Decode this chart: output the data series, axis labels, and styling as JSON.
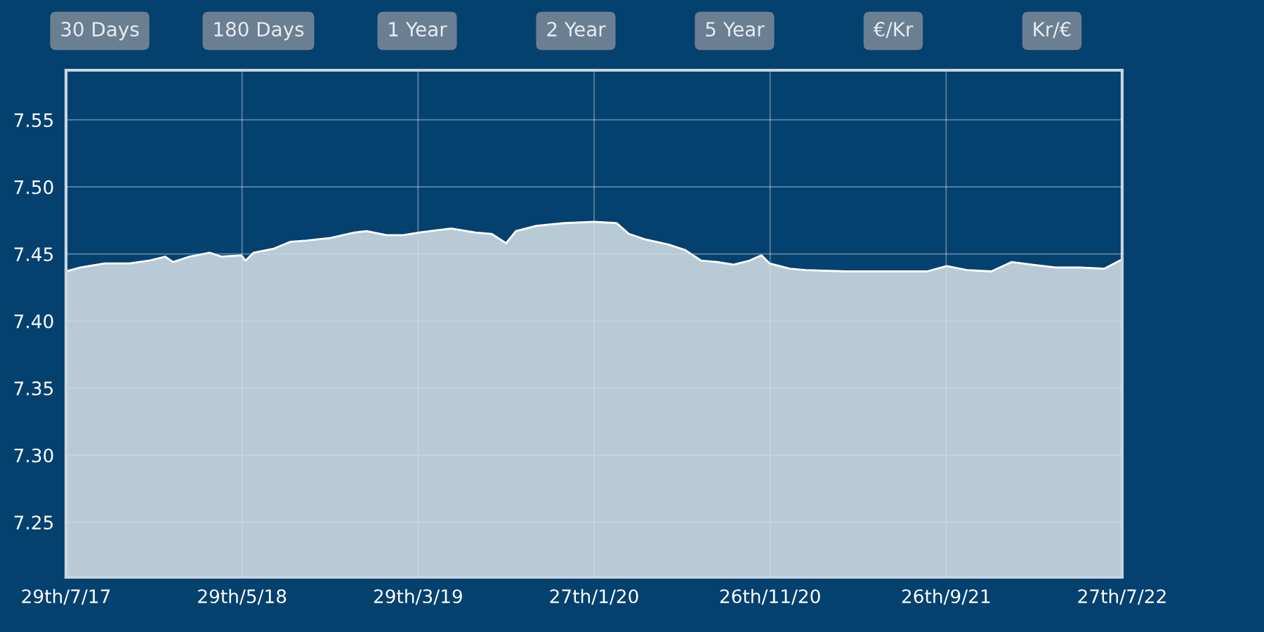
{
  "chart_data": {
    "type": "area",
    "annotations": [
      "30 Days",
      "180 Days",
      "1 Year",
      "2 Year",
      "5 Year",
      "€/Kr",
      "Kr/€"
    ],
    "x": [
      "2017-07-29",
      "2017-08-23",
      "2017-10-04",
      "2017-11-15",
      "2017-12-19",
      "2018-01-16",
      "2018-01-30",
      "2018-02-27",
      "2018-04-03",
      "2018-04-24",
      "2018-05-28",
      "2018-06-04",
      "2018-06-18",
      "2018-07-23",
      "2018-08-20",
      "2018-09-17",
      "2018-10-29",
      "2018-12-09",
      "2018-12-30",
      "2019-02-03",
      "2019-03-03",
      "2019-03-31",
      "2019-05-25",
      "2019-07-06",
      "2019-08-03",
      "2019-08-28",
      "2019-09-14",
      "2019-10-19",
      "2019-12-06",
      "2020-01-27",
      "2020-03-06",
      "2020-03-27",
      "2020-04-23",
      "2020-06-04",
      "2020-07-02",
      "2020-07-30",
      "2020-08-27",
      "2020-09-24",
      "2020-10-21",
      "2020-11-11",
      "2020-11-25",
      "2020-12-30",
      "2021-01-27",
      "2021-04-06",
      "2021-06-15",
      "2021-08-24",
      "2021-09-27",
      "2021-11-01",
      "2021-12-13",
      "2022-01-17",
      "2022-02-21",
      "2022-04-03",
      "2022-05-15",
      "2022-06-26",
      "2022-07-27"
    ],
    "series": [
      {
        "color": "#ffffff",
        "values": [
          7.437,
          7.44,
          7.443,
          7.443,
          7.445,
          7.448,
          7.444,
          7.448,
          7.451,
          7.448,
          7.449,
          7.445,
          7.451,
          7.454,
          7.459,
          7.46,
          7.462,
          7.466,
          7.467,
          7.464,
          7.464,
          7.466,
          7.469,
          7.466,
          7.465,
          7.458,
          7.467,
          7.471,
          7.473,
          7.474,
          7.473,
          7.465,
          7.461,
          7.457,
          7.453,
          7.445,
          7.444,
          7.442,
          7.445,
          7.449,
          7.443,
          7.439,
          7.438,
          7.437,
          7.437,
          7.437,
          7.441,
          7.438,
          7.437,
          7.444,
          7.442,
          7.44,
          7.44,
          7.439,
          7.446
        ]
      }
    ],
    "xlim": [
      "2017-07-29",
      "2022-07-27"
    ],
    "xticks": [
      {
        "value": "2017-07-29",
        "label": "29th/7/17"
      },
      {
        "value": "2018-05-29",
        "label": "29th/5/18"
      },
      {
        "value": "2019-03-29",
        "label": "29th/3/19"
      },
      {
        "value": "2020-01-27",
        "label": "27th/1/20"
      },
      {
        "value": "2020-11-26",
        "label": "26th/11/20"
      },
      {
        "value": "2021-09-26",
        "label": "26th/9/21"
      },
      {
        "value": "2022-07-27",
        "label": "27th/7/22"
      }
    ],
    "ylim": [
      7.209,
      7.587
    ],
    "yticks": [
      7.25,
      {
        "value": 7.3,
        "label": "7.30"
      },
      7.35,
      {
        "value": 7.4,
        "label": "7.40"
      },
      7.45,
      {
        "value": 7.5,
        "label": "7.50"
      },
      7.55
    ],
    "grid": true,
    "legend": false
  }
}
